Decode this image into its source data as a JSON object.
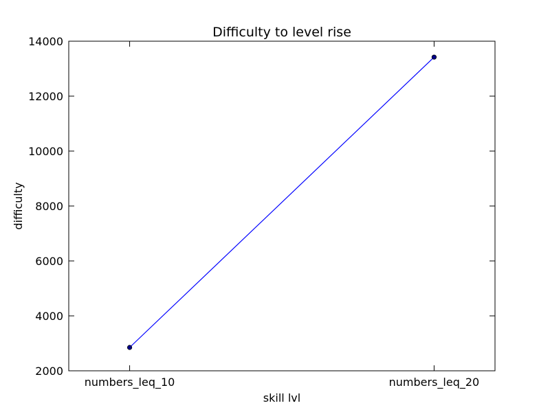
{
  "chart_data": {
    "type": "line",
    "title": "Difficulty to level rise",
    "xlabel": "skill lvl",
    "ylabel": "difficulty",
    "categories": [
      "numbers_leq_10",
      "numbers_leq_20"
    ],
    "series": [
      {
        "values": [
          2850,
          13420
        ],
        "color": "#0000ff",
        "marker_color": "#00008b"
      }
    ],
    "ylim": [
      2000,
      14000
    ],
    "yticks": [
      2000,
      4000,
      6000,
      8000,
      10000,
      12000,
      14000
    ],
    "xlim": [
      -0.2,
      1.2
    ],
    "grid": false,
    "legend": "none"
  }
}
